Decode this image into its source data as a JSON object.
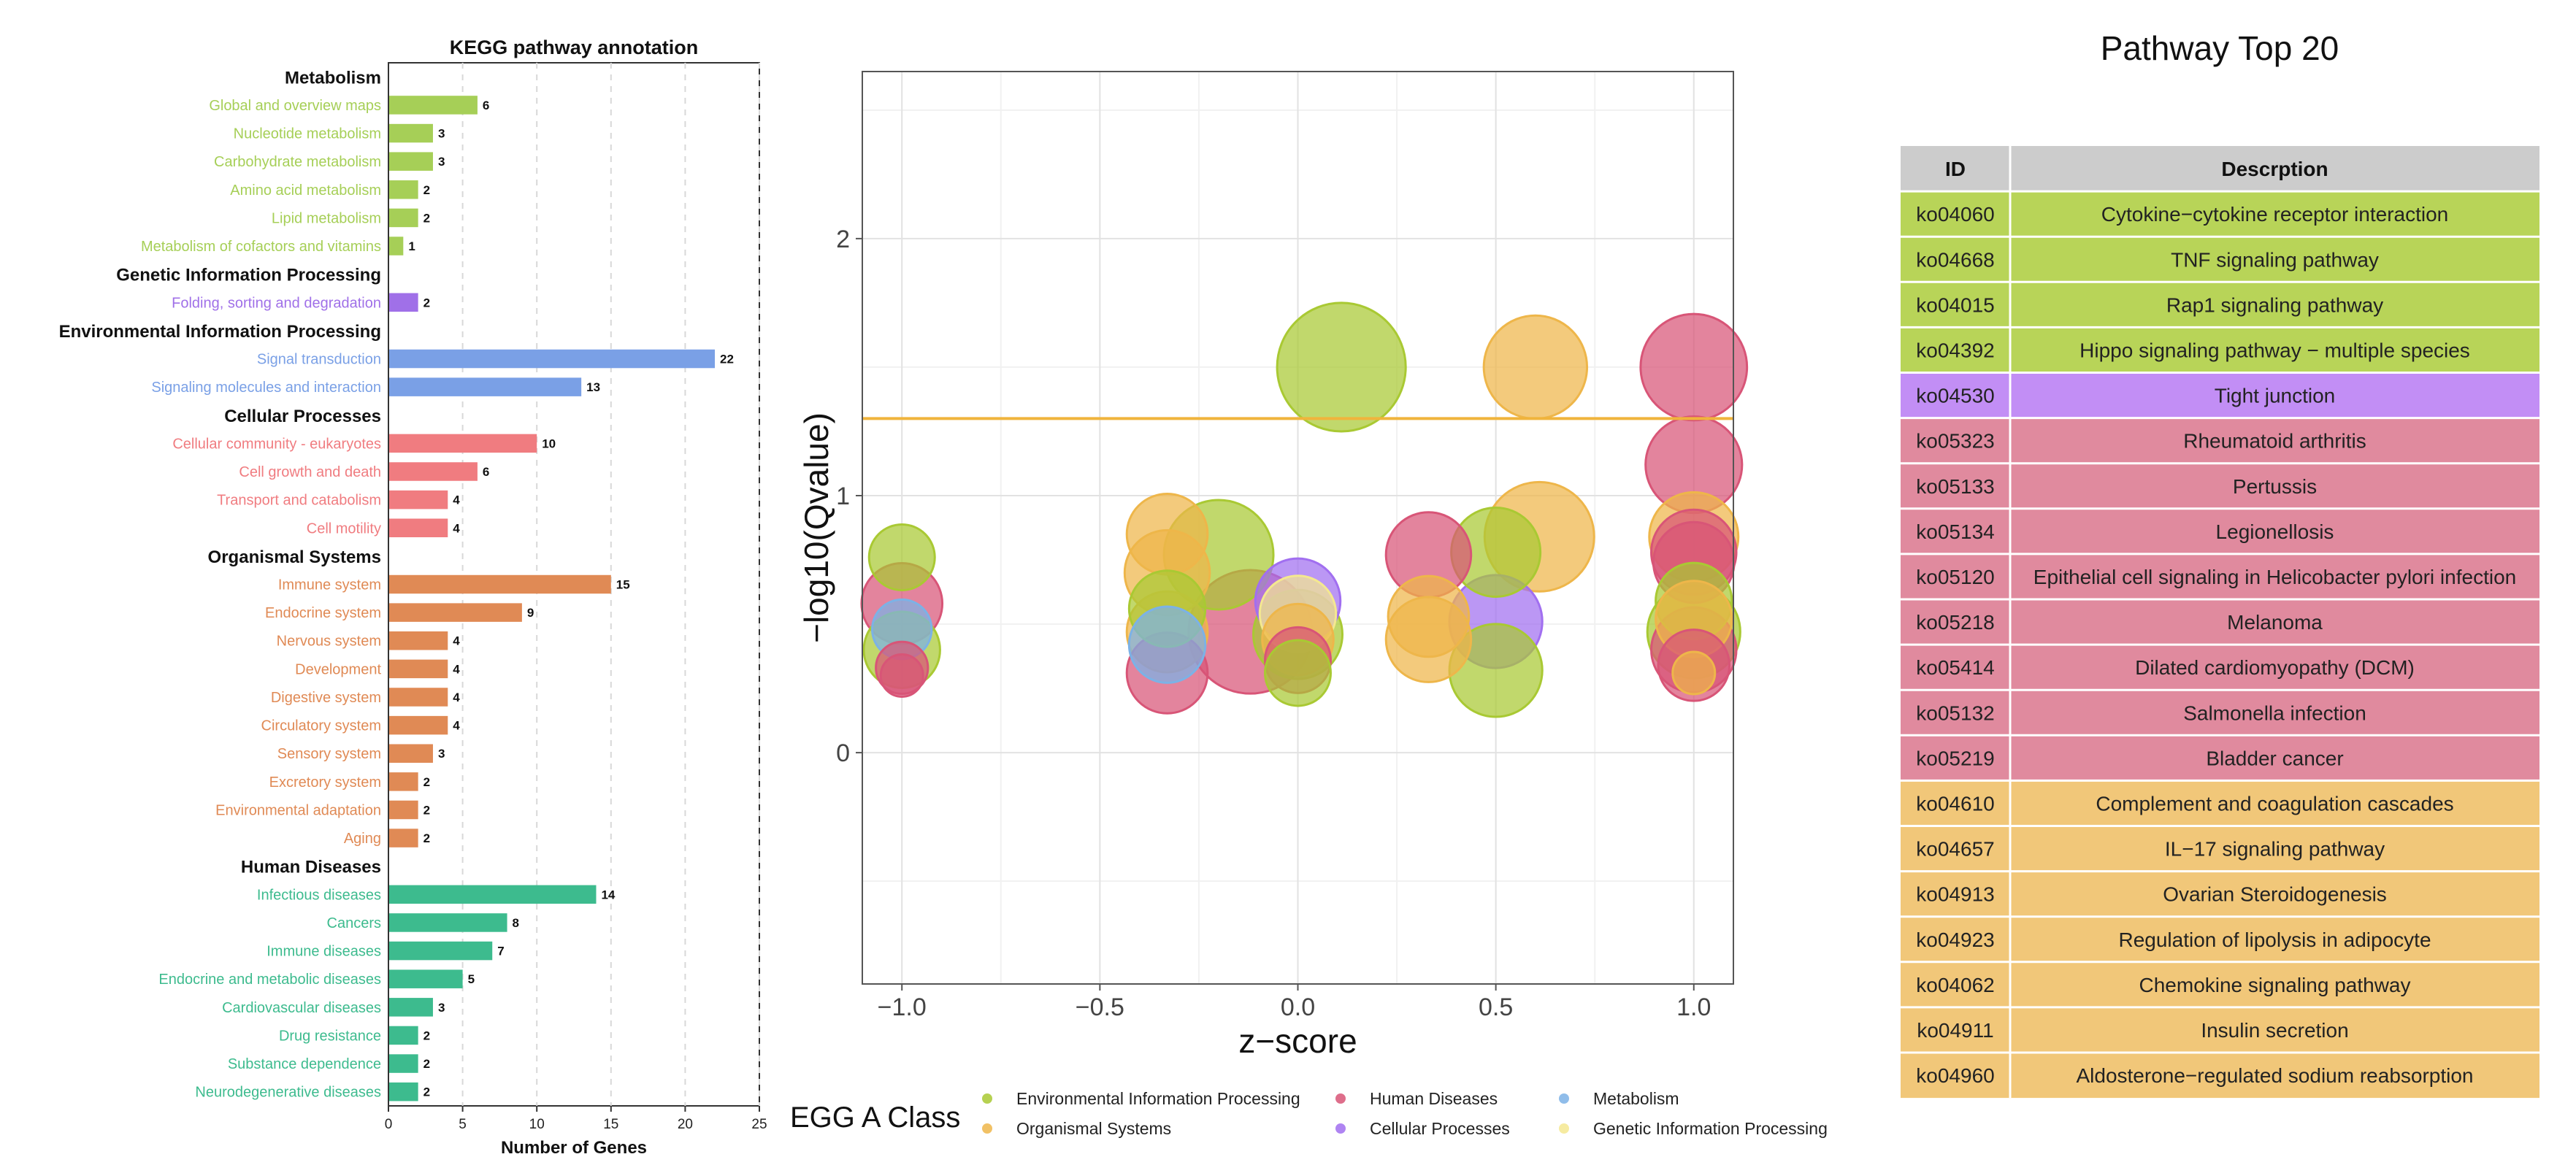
{
  "colors": {
    "Metabolism": "#a6cf57",
    "Genetic Information Processing": "#a070e8",
    "Environmental Information Processing": "#7aa0e6",
    "Cellular Processes": "#f07c80",
    "Organismal Systems": "#e08a55",
    "Human Diseases": "#3dbb8e",
    "bubble_env": "#a9c933",
    "bubble_org": "#eeb64a",
    "bubble_human": "#d85577",
    "bubble_cell": "#a16ff0",
    "bubble_metab": "#7cb2e6",
    "bubble_gen": "#f4e890",
    "table_header": "#cccccc",
    "row_env": "#b8d458",
    "row_cell": "#c28ef5",
    "row_human": "#e08a9e",
    "row_org": "#f1c779",
    "threshold_line": "#f0b43c"
  },
  "chart_data": [
    {
      "type": "bar",
      "orientation": "horizontal",
      "title": "KEGG pathway annotation",
      "xlabel": "Number of Genes",
      "xlim": [
        0,
        25
      ],
      "xticks": [
        "0",
        "5",
        "10",
        "15",
        "20",
        "25"
      ],
      "groups": [
        {
          "name": "Metabolism",
          "color_key": "Metabolism",
          "items": [
            {
              "label": "Global and overview maps",
              "value": 6
            },
            {
              "label": "Nucleotide metabolism",
              "value": 3
            },
            {
              "label": "Carbohydrate metabolism",
              "value": 3
            },
            {
              "label": "Amino acid metabolism",
              "value": 2
            },
            {
              "label": "Lipid metabolism",
              "value": 2
            },
            {
              "label": "Metabolism of cofactors and vitamins",
              "value": 1
            }
          ]
        },
        {
          "name": "Genetic Information Processing",
          "color_key": "Genetic Information Processing",
          "items": [
            {
              "label": "Folding, sorting and degradation",
              "value": 2
            }
          ]
        },
        {
          "name": "Environmental Information Processing",
          "color_key": "Environmental Information Processing",
          "items": [
            {
              "label": "Signal transduction",
              "value": 22
            },
            {
              "label": "Signaling molecules and interaction",
              "value": 13
            }
          ]
        },
        {
          "name": "Cellular Processes",
          "color_key": "Cellular Processes",
          "items": [
            {
              "label": "Cellular community - eukaryotes",
              "value": 10
            },
            {
              "label": "Cell growth and death",
              "value": 6
            },
            {
              "label": "Transport and catabolism",
              "value": 4
            },
            {
              "label": "Cell motility",
              "value": 4
            }
          ]
        },
        {
          "name": "Organismal Systems",
          "color_key": "Organismal Systems",
          "items": [
            {
              "label": "Immune system",
              "value": 15
            },
            {
              "label": "Endocrine system",
              "value": 9
            },
            {
              "label": "Nervous system",
              "value": 4
            },
            {
              "label": "Development",
              "value": 4
            },
            {
              "label": "Digestive system",
              "value": 4
            },
            {
              "label": "Circulatory system",
              "value": 4
            },
            {
              "label": "Sensory system",
              "value": 3
            },
            {
              "label": "Excretory system",
              "value": 2
            },
            {
              "label": "Environmental adaptation",
              "value": 2
            },
            {
              "label": "Aging",
              "value": 2
            }
          ]
        },
        {
          "name": "Human Diseases",
          "color_key": "Human Diseases",
          "items": [
            {
              "label": "Infectious diseases",
              "value": 14
            },
            {
              "label": "Cancers",
              "value": 8
            },
            {
              "label": "Immune diseases",
              "value": 7
            },
            {
              "label": "Endocrine and metabolic diseases",
              "value": 5
            },
            {
              "label": "Cardiovascular diseases",
              "value": 3
            },
            {
              "label": "Drug resistance",
              "value": 2
            },
            {
              "label": "Substance dependence",
              "value": 2
            },
            {
              "label": "Neurodegenerative diseases",
              "value": 2
            }
          ]
        }
      ]
    },
    {
      "type": "scatter",
      "subtype": "bubble",
      "xlabel": "z−score",
      "ylabel": "−log10(Qvalue)",
      "xlim": [
        -1.1,
        1.1
      ],
      "ylim": [
        -0.9,
        2.65
      ],
      "xticks": [
        {
          "value": -1.0,
          "label": "−1.0"
        },
        {
          "value": -0.5,
          "label": "−0.5"
        },
        {
          "value": 0.0,
          "label": "0.0"
        },
        {
          "value": 0.5,
          "label": "0.5"
        },
        {
          "value": 1.0,
          "label": "1.0"
        }
      ],
      "yticks": [
        {
          "value": 0,
          "label": "0"
        },
        {
          "value": 1,
          "label": "1"
        },
        {
          "value": 2,
          "label": "2"
        }
      ],
      "threshold": 1.3,
      "legend": {
        "title": "EGG A Class",
        "entries": [
          {
            "label": "Environmental Information Processing",
            "color_key": "bubble_env"
          },
          {
            "label": "Human Diseases",
            "color_key": "bubble_human"
          },
          {
            "label": "Metabolism",
            "color_key": "bubble_metab"
          },
          {
            "label": "Organismal Systems",
            "color_key": "bubble_org"
          },
          {
            "label": "Cellular Processes",
            "color_key": "bubble_cell"
          },
          {
            "label": "Genetic Information Processing",
            "color_key": "bubble_gen"
          }
        ]
      },
      "points": [
        {
          "x": 0.11,
          "y": 1.5,
          "size": 22,
          "cls": "bubble_env"
        },
        {
          "x": 0.6,
          "y": 1.5,
          "size": 13,
          "cls": "bubble_org"
        },
        {
          "x": 1.0,
          "y": 1.5,
          "size": 14,
          "cls": "bubble_human"
        },
        {
          "x": 1.0,
          "y": 1.12,
          "size": 11,
          "cls": "bubble_human"
        },
        {
          "x": 0.61,
          "y": 0.84,
          "size": 15,
          "cls": "bubble_org"
        },
        {
          "x": 1.0,
          "y": 0.84,
          "size": 9,
          "cls": "bubble_org"
        },
        {
          "x": 1.0,
          "y": 0.78,
          "size": 8,
          "cls": "bubble_human"
        },
        {
          "x": 1.0,
          "y": 0.74,
          "size": 7,
          "cls": "bubble_human"
        },
        {
          "x": -0.33,
          "y": 0.85,
          "size": 7,
          "cls": "bubble_org"
        },
        {
          "x": -0.2,
          "y": 0.77,
          "size": 15,
          "cls": "bubble_env"
        },
        {
          "x": 0.33,
          "y": 0.77,
          "size": 8,
          "cls": "bubble_human"
        },
        {
          "x": 0.5,
          "y": 0.78,
          "size": 9,
          "cls": "bubble_env"
        },
        {
          "x": -0.33,
          "y": 0.7,
          "size": 8,
          "cls": "bubble_org"
        },
        {
          "x": -1.0,
          "y": 0.76,
          "size": 4,
          "cls": "bubble_env"
        },
        {
          "x": -1.0,
          "y": 0.58,
          "size": 7,
          "cls": "bubble_human"
        },
        {
          "x": -0.33,
          "y": 0.47,
          "size": 7,
          "cls": "bubble_org"
        },
        {
          "x": -0.33,
          "y": 0.56,
          "size": 6,
          "cls": "bubble_env"
        },
        {
          "x": -0.12,
          "y": 0.47,
          "size": 20,
          "cls": "bubble_human"
        },
        {
          "x": 0.0,
          "y": 0.59,
          "size": 8,
          "cls": "bubble_cell"
        },
        {
          "x": 0.0,
          "y": 0.54,
          "size": 6,
          "cls": "bubble_gen"
        },
        {
          "x": 0.33,
          "y": 0.53,
          "size": 7,
          "cls": "bubble_org"
        },
        {
          "x": 0.5,
          "y": 0.51,
          "size": 10,
          "cls": "bubble_cell"
        },
        {
          "x": 1.0,
          "y": 0.59,
          "size": 6,
          "cls": "bubble_env"
        },
        {
          "x": 1.0,
          "y": 0.52,
          "size": 6,
          "cls": "bubble_org"
        },
        {
          "x": -1.0,
          "y": 0.48,
          "size": 3,
          "cls": "bubble_metab"
        },
        {
          "x": -1.0,
          "y": 0.4,
          "size": 6,
          "cls": "bubble_env"
        },
        {
          "x": -0.33,
          "y": 0.42,
          "size": 6,
          "cls": "bubble_metab"
        },
        {
          "x": 0.0,
          "y": 0.46,
          "size": 9,
          "cls": "bubble_env"
        },
        {
          "x": 0.0,
          "y": 0.44,
          "size": 5,
          "cls": "bubble_org"
        },
        {
          "x": 0.33,
          "y": 0.44,
          "size": 8,
          "cls": "bubble_org"
        },
        {
          "x": 1.0,
          "y": 0.47,
          "size": 10,
          "cls": "bubble_env"
        },
        {
          "x": 1.0,
          "y": 0.4,
          "size": 8,
          "cls": "bubble_human"
        },
        {
          "x": -1.0,
          "y": 0.33,
          "size": 2,
          "cls": "bubble_human"
        },
        {
          "x": -1.0,
          "y": 0.3,
          "size": 1,
          "cls": "bubble_human"
        },
        {
          "x": -0.33,
          "y": 0.31,
          "size": 7,
          "cls": "bubble_human"
        },
        {
          "x": 0.0,
          "y": 0.36,
          "size": 4,
          "cls": "bubble_human"
        },
        {
          "x": 0.0,
          "y": 0.31,
          "size": 4,
          "cls": "bubble_env"
        },
        {
          "x": 0.5,
          "y": 0.32,
          "size": 10,
          "cls": "bubble_env"
        },
        {
          "x": 1.0,
          "y": 0.34,
          "size": 5,
          "cls": "bubble_human"
        },
        {
          "x": 1.0,
          "y": 0.31,
          "size": 1,
          "cls": "bubble_org"
        }
      ]
    },
    {
      "type": "table",
      "title": "Pathway Top 20",
      "columns": [
        "ID",
        "Descrption"
      ],
      "rows": [
        {
          "id": "ko04060",
          "desc": "Cytokine−cytokine receptor interaction",
          "color_key": "row_env"
        },
        {
          "id": "ko04668",
          "desc": "TNF signaling pathway",
          "color_key": "row_env"
        },
        {
          "id": "ko04015",
          "desc": "Rap1 signaling pathway",
          "color_key": "row_env"
        },
        {
          "id": "ko04392",
          "desc": "Hippo signaling pathway − multiple species",
          "color_key": "row_env"
        },
        {
          "id": "ko04530",
          "desc": "Tight junction",
          "color_key": "row_cell"
        },
        {
          "id": "ko05323",
          "desc": "Rheumatoid arthritis",
          "color_key": "row_human"
        },
        {
          "id": "ko05133",
          "desc": "Pertussis",
          "color_key": "row_human"
        },
        {
          "id": "ko05134",
          "desc": "Legionellosis",
          "color_key": "row_human"
        },
        {
          "id": "ko05120",
          "desc": "Epithelial cell signaling in Helicobacter pylori infection",
          "color_key": "row_human"
        },
        {
          "id": "ko05218",
          "desc": "Melanoma",
          "color_key": "row_human"
        },
        {
          "id": "ko05414",
          "desc": "Dilated cardiomyopathy (DCM)",
          "color_key": "row_human"
        },
        {
          "id": "ko05132",
          "desc": "Salmonella infection",
          "color_key": "row_human"
        },
        {
          "id": "ko05219",
          "desc": "Bladder cancer",
          "color_key": "row_human"
        },
        {
          "id": "ko04610",
          "desc": "Complement and coagulation cascades",
          "color_key": "row_org"
        },
        {
          "id": "ko04657",
          "desc": "IL−17 signaling pathway",
          "color_key": "row_org"
        },
        {
          "id": "ko04913",
          "desc": "Ovarian Steroidogenesis",
          "color_key": "row_org"
        },
        {
          "id": "ko04923",
          "desc": "Regulation of lipolysis in adipocyte",
          "color_key": "row_org"
        },
        {
          "id": "ko04062",
          "desc": "Chemokine signaling pathway",
          "color_key": "row_org"
        },
        {
          "id": "ko04911",
          "desc": "Insulin secretion",
          "color_key": "row_org"
        },
        {
          "id": "ko04960",
          "desc": "Aldosterone−regulated sodium reabsorption",
          "color_key": "row_org"
        }
      ]
    }
  ]
}
